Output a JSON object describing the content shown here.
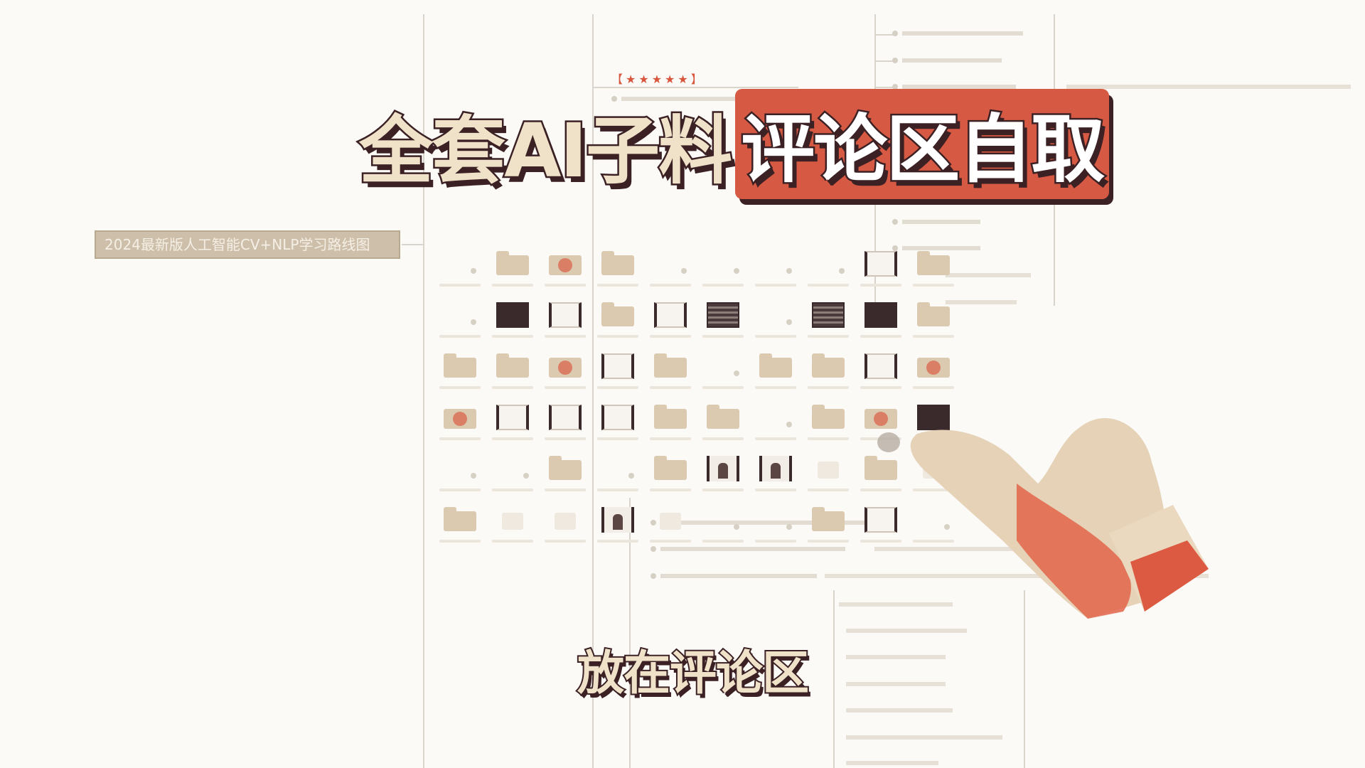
{
  "headline": {
    "part_a": "全套AI子料",
    "part_b": "评论区自取"
  },
  "subtitle": "放在评论区",
  "mindmap": {
    "root_label": "2024最新版人工智能CV+NLP学习路线图",
    "rating": "【★★★★★】"
  },
  "colors": {
    "headline_fill": "#efe2c9",
    "headline_outline": "#3b2024",
    "accent_red": "#d65a43",
    "root_node": "#cdbfa9"
  },
  "file_grid": [
    [
      "empty",
      "folder",
      "red",
      "folder",
      "empty",
      "empty",
      "empty",
      "empty",
      "frame",
      "folder"
    ],
    [
      "empty",
      "dark",
      "frame",
      "folder",
      "frame",
      "striped",
      "empty",
      "striped",
      "dark",
      "folder"
    ],
    [
      "folder",
      "folder",
      "red",
      "frame",
      "folder",
      "empty",
      "folder",
      "folder",
      "frame",
      "red"
    ],
    [
      "red",
      "frame",
      "frame",
      "frame",
      "folder",
      "folder",
      "empty",
      "folder",
      "red",
      "dark"
    ],
    [
      "empty",
      "empty",
      "folder",
      "empty",
      "folder",
      "photo",
      "photo",
      "faint",
      "folder",
      "faint"
    ],
    [
      "folder",
      "faint",
      "faint",
      "photo",
      "faint",
      "empty",
      "empty",
      "folder",
      "frame",
      "empty"
    ]
  ]
}
